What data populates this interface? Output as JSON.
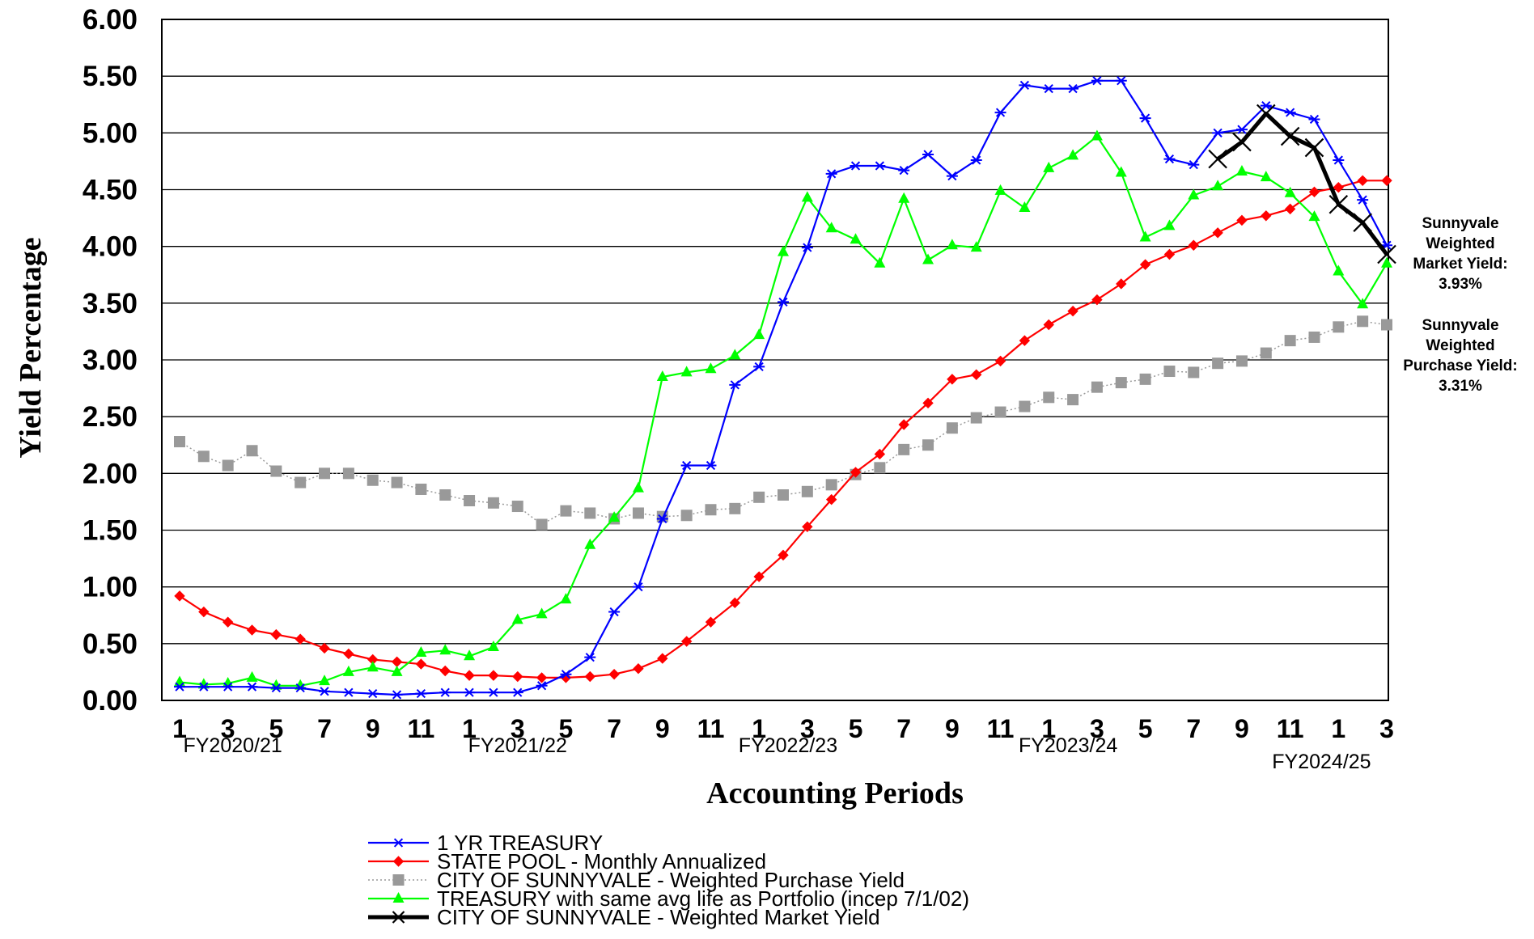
{
  "chart_data": {
    "type": "line",
    "title": "",
    "xlabel": "Accounting Periods",
    "ylabel": "Yield Percentage",
    "ylim": [
      0,
      6
    ],
    "ytick_step": 0.5,
    "ytick_labels": [
      "0.00",
      "0.50",
      "1.00",
      "1.50",
      "2.00",
      "2.50",
      "3.00",
      "3.50",
      "4.00",
      "4.50",
      "5.00",
      "5.50",
      "6.00"
    ],
    "grid": "horizontal",
    "legend_position": "bottom",
    "x_tick_labels": [
      "1",
      "3",
      "5",
      "7",
      "9",
      "11",
      "1",
      "3",
      "5",
      "7",
      "9",
      "11",
      "1",
      "3",
      "5",
      "7",
      "9",
      "11",
      "1",
      "3",
      "5",
      "7",
      "9",
      "11",
      "1",
      "3"
    ],
    "x_tick_periods": [
      1,
      3,
      5,
      7,
      9,
      11,
      13,
      15,
      17,
      19,
      21,
      23,
      25,
      27,
      29,
      31,
      33,
      35,
      37,
      39,
      41,
      43,
      45,
      47,
      49,
      51
    ],
    "x_range": [
      1,
      51
    ],
    "fiscal_years": [
      {
        "label": "FY2020/21",
        "period": 3.2,
        "row": 1
      },
      {
        "label": "FY2021/22",
        "period": 15,
        "row": 1
      },
      {
        "label": "FY2022/23",
        "period": 26.2,
        "row": 1
      },
      {
        "label": "FY2023/24",
        "period": 37.8,
        "row": 1
      },
      {
        "label": "FY2024/25",
        "period": 48.3,
        "row": 2
      }
    ],
    "series": [
      {
        "name": "1 YR TREASURY",
        "color": "#0000ff",
        "marker": "star",
        "x": [
          1,
          2,
          3,
          4,
          5,
          6,
          7,
          8,
          9,
          10,
          11,
          12,
          13,
          14,
          15,
          16,
          17,
          18,
          19,
          20,
          21,
          22,
          23,
          24,
          25,
          26,
          27,
          28,
          29,
          30,
          31,
          32,
          33,
          34,
          35,
          36,
          37,
          38,
          39,
          40,
          41,
          42,
          43,
          44,
          45,
          46,
          47,
          48,
          49,
          50,
          51
        ],
        "values": [
          0.12,
          0.12,
          0.12,
          0.12,
          0.11,
          0.11,
          0.08,
          0.07,
          0.06,
          0.05,
          0.06,
          0.07,
          0.07,
          0.07,
          0.07,
          0.13,
          0.23,
          0.38,
          0.78,
          1.0,
          1.6,
          2.07,
          2.07,
          2.78,
          2.94,
          3.51,
          3.99,
          4.64,
          4.71,
          4.71,
          4.67,
          4.81,
          4.62,
          4.76,
          5.18,
          5.42,
          5.39,
          5.39,
          5.46,
          5.46,
          5.13,
          4.77,
          4.72,
          5.0,
          5.03,
          5.24,
          5.18,
          5.12,
          4.76,
          4.41,
          4.01
        ]
      },
      {
        "name": "STATE POOL - Monthly Annualized",
        "color": "#ff0000",
        "marker": "diamond",
        "x": [
          1,
          2,
          3,
          4,
          5,
          6,
          7,
          8,
          9,
          10,
          11,
          12,
          13,
          14,
          15,
          16,
          17,
          18,
          19,
          20,
          21,
          22,
          23,
          24,
          25,
          26,
          27,
          28,
          29,
          30,
          31,
          32,
          33,
          34,
          35,
          36,
          37,
          38,
          39,
          40,
          41,
          42,
          43,
          44,
          45,
          46,
          47,
          48,
          49,
          50,
          51
        ],
        "values": [
          0.92,
          0.78,
          0.69,
          0.62,
          0.58,
          0.54,
          0.46,
          0.41,
          0.36,
          0.34,
          0.32,
          0.26,
          0.22,
          0.22,
          0.21,
          0.2,
          0.2,
          0.21,
          0.23,
          0.28,
          0.37,
          0.52,
          0.69,
          0.86,
          1.09,
          1.28,
          1.53,
          1.77,
          2.01,
          2.17,
          2.43,
          2.62,
          2.83,
          2.87,
          2.99,
          3.17,
          3.31,
          3.43,
          3.53,
          3.67,
          3.84,
          3.93,
          4.01,
          4.12,
          4.23,
          4.27,
          4.33,
          4.48,
          4.52,
          4.58,
          4.58
        ]
      },
      {
        "name": "CITY OF SUNNYVALE - Weighted Purchase Yield",
        "color": "#999999",
        "marker": "square",
        "x": [
          1,
          2,
          3,
          4,
          5,
          6,
          7,
          8,
          9,
          10,
          11,
          12,
          13,
          14,
          15,
          16,
          17,
          18,
          19,
          20,
          21,
          22,
          23,
          24,
          25,
          26,
          27,
          28,
          29,
          30,
          31,
          32,
          33,
          34,
          35,
          36,
          37,
          38,
          39,
          40,
          41,
          42,
          43,
          44,
          45,
          46,
          47,
          48,
          49,
          50,
          51
        ],
        "values": [
          2.28,
          2.15,
          2.07,
          2.2,
          2.02,
          1.92,
          2.0,
          2.0,
          1.94,
          1.92,
          1.86,
          1.81,
          1.76,
          1.74,
          1.71,
          1.55,
          1.67,
          1.65,
          1.6,
          1.65,
          1.62,
          1.63,
          1.68,
          1.69,
          1.79,
          1.81,
          1.84,
          1.9,
          1.99,
          2.05,
          2.21,
          2.25,
          2.4,
          2.49,
          2.54,
          2.59,
          2.67,
          2.65,
          2.76,
          2.8,
          2.83,
          2.9,
          2.89,
          2.97,
          2.99,
          3.06,
          3.17,
          3.2,
          3.29,
          3.34,
          3.31
        ]
      },
      {
        "name": "TREASURY with same avg life as Portfolio (incep 7/1/02)",
        "color": "#00ff00",
        "marker": "triangle",
        "x": [
          1,
          2,
          3,
          4,
          5,
          6,
          7,
          8,
          9,
          10,
          11,
          12,
          13,
          14,
          15,
          16,
          17,
          18,
          19,
          20,
          21,
          22,
          23,
          24,
          25,
          26,
          27,
          28,
          29,
          30,
          31,
          32,
          33,
          34,
          35,
          36,
          37,
          38,
          39,
          40,
          41,
          42,
          43,
          44,
          45,
          46,
          47,
          48,
          49,
          50,
          51
        ],
        "values": [
          0.16,
          0.14,
          0.15,
          0.2,
          0.13,
          0.13,
          0.17,
          0.25,
          0.29,
          0.25,
          0.42,
          0.44,
          0.39,
          0.47,
          0.71,
          0.76,
          0.89,
          1.37,
          1.61,
          1.87,
          2.85,
          2.89,
          2.92,
          3.04,
          3.22,
          3.95,
          4.43,
          4.16,
          4.06,
          3.85,
          4.42,
          3.88,
          4.01,
          3.99,
          4.49,
          4.34,
          4.69,
          4.8,
          4.97,
          4.65,
          4.08,
          4.18,
          4.45,
          4.53,
          4.66,
          4.61,
          4.47,
          4.26,
          3.78,
          3.49,
          3.85
        ]
      },
      {
        "name": "CITY OF SUNNYVALE - Weighted Market Yield",
        "color": "#000000",
        "marker": "x",
        "x": [
          44,
          45,
          46,
          47,
          48,
          49,
          50,
          51
        ],
        "values": [
          4.77,
          4.92,
          5.17,
          4.97,
          4.87,
          4.37,
          4.21,
          3.93
        ]
      }
    ],
    "annotations": [
      {
        "lines": [
          "Sunnyvale",
          "Weighted",
          "Market Yield:",
          "3.93%"
        ]
      },
      {
        "lines": [
          "Sunnyvale",
          "Weighted",
          "Purchase Yield:",
          "3.31%"
        ]
      }
    ]
  }
}
